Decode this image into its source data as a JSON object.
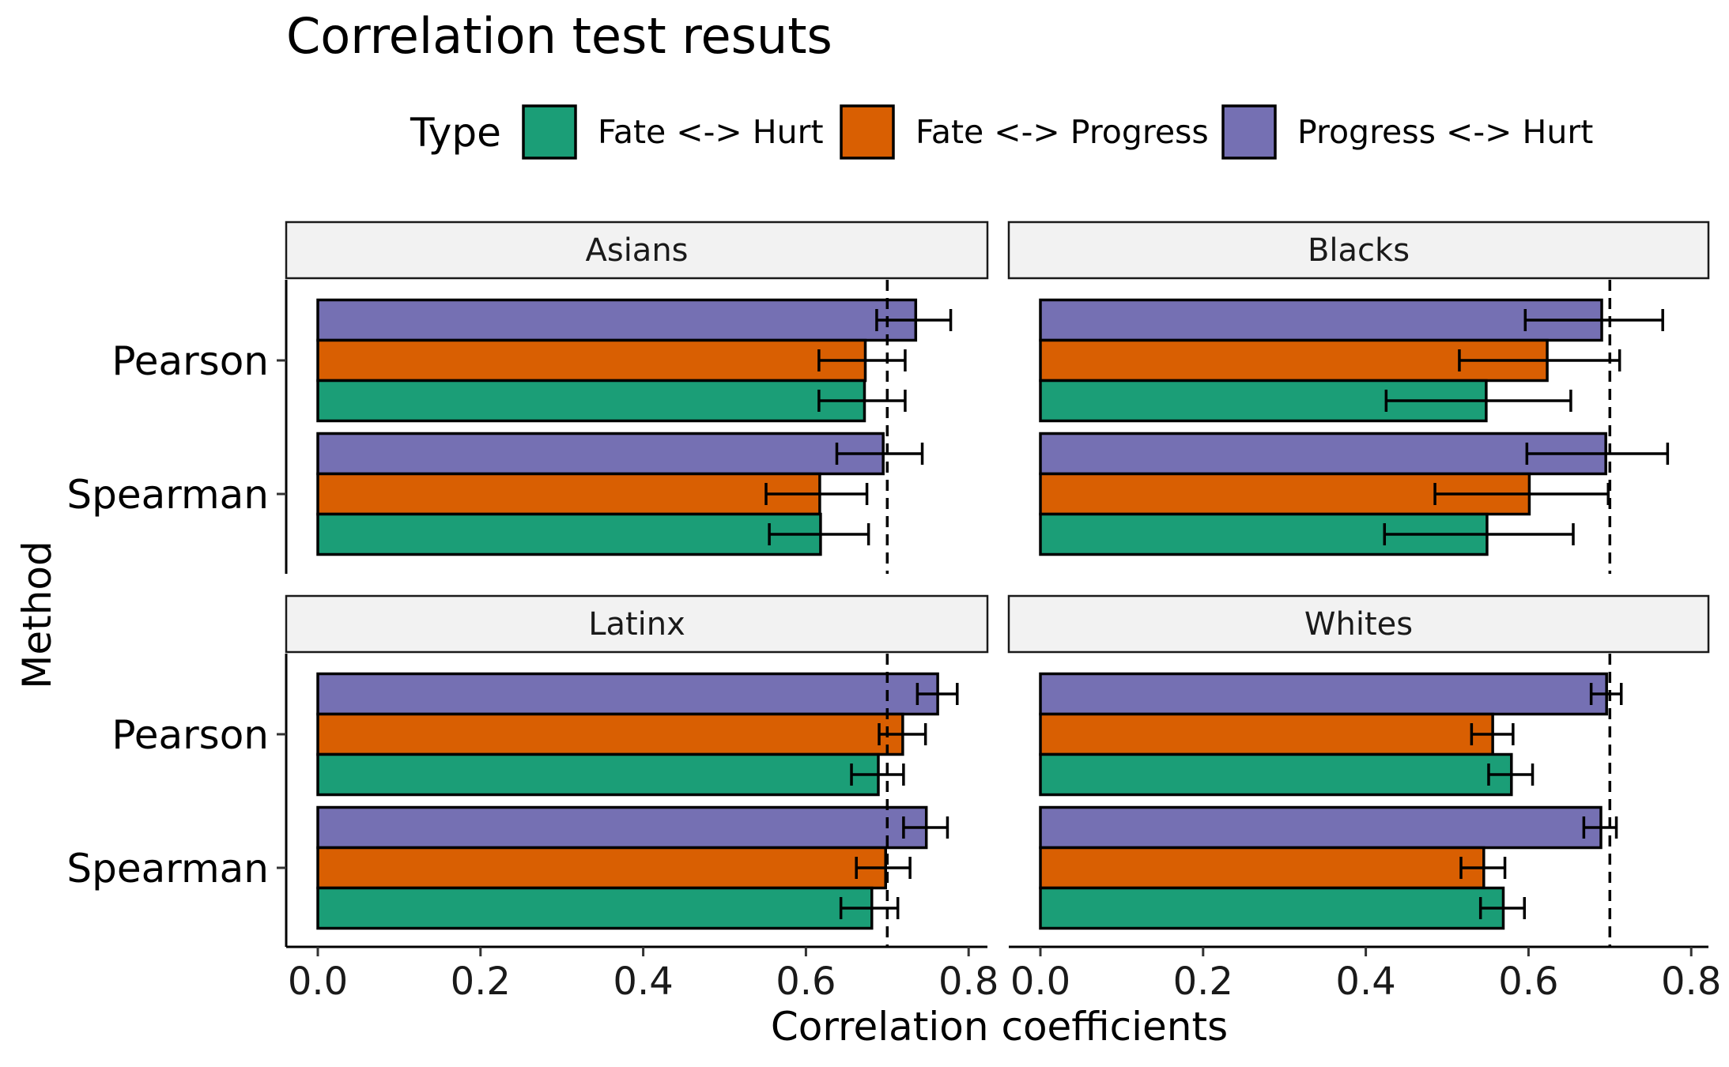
{
  "colors": {
    "Fate <-> Hurt": "#1b9e77",
    "Fate <-> Progress": "#d95f02",
    "Progress <-> Hurt": "#7570b3",
    "strip_fill": "#f2f2f2"
  },
  "chart_data": {
    "type": "bar",
    "orientation": "horizontal",
    "title": "Correlation test resuts",
    "xlabel": "Correlation coefficients",
    "ylabel": "Method",
    "legend_title": "Type",
    "legend_position": "top",
    "xlim": [
      0,
      0.8
    ],
    "xticks": [
      "0.0",
      "0.2",
      "0.4",
      "0.6",
      "0.8"
    ],
    "reference_line": 0.7,
    "categories": [
      "Pearson",
      "Spearman"
    ],
    "types": [
      "Fate <-> Hurt",
      "Fate <-> Progress",
      "Progress <-> Hurt"
    ],
    "panels": [
      {
        "name": "Asians",
        "series": [
          {
            "name": "Fate <-> Hurt",
            "values": [
              0.672,
              0.618
            ],
            "ci_low": [
              0.616,
              0.555
            ],
            "ci_high": [
              0.722,
              0.677
            ]
          },
          {
            "name": "Fate <-> Progress",
            "values": [
              0.673,
              0.617
            ],
            "ci_low": [
              0.616,
              0.551
            ],
            "ci_high": [
              0.722,
              0.675
            ]
          },
          {
            "name": "Progress <-> Hurt",
            "values": [
              0.735,
              0.695
            ],
            "ci_low": [
              0.687,
              0.638
            ],
            "ci_high": [
              0.778,
              0.743
            ]
          }
        ]
      },
      {
        "name": "Blacks",
        "series": [
          {
            "name": "Fate <-> Hurt",
            "values": [
              0.548,
              0.549
            ],
            "ci_low": [
              0.425,
              0.423
            ],
            "ci_high": [
              0.652,
              0.655
            ]
          },
          {
            "name": "Fate <-> Progress",
            "values": [
              0.623,
              0.601
            ],
            "ci_low": [
              0.515,
              0.485
            ],
            "ci_high": [
              0.712,
              0.698
            ]
          },
          {
            "name": "Progress <-> Hurt",
            "values": [
              0.69,
              0.695
            ],
            "ci_low": [
              0.596,
              0.598
            ],
            "ci_high": [
              0.765,
              0.771
            ]
          }
        ]
      },
      {
        "name": "Latinx",
        "series": [
          {
            "name": "Fate <-> Hurt",
            "values": [
              0.689,
              0.681
            ],
            "ci_low": [
              0.656,
              0.643
            ],
            "ci_high": [
              0.72,
              0.713
            ]
          },
          {
            "name": "Fate <-> Progress",
            "values": [
              0.719,
              0.698
            ],
            "ci_low": [
              0.69,
              0.662
            ],
            "ci_high": [
              0.747,
              0.728
            ]
          },
          {
            "name": "Progress <-> Hurt",
            "values": [
              0.762,
              0.748
            ],
            "ci_low": [
              0.737,
              0.72
            ],
            "ci_high": [
              0.786,
              0.774
            ]
          }
        ]
      },
      {
        "name": "Whites",
        "series": [
          {
            "name": "Fate <-> Hurt",
            "values": [
              0.579,
              0.569
            ],
            "ci_low": [
              0.551,
              0.541
            ],
            "ci_high": [
              0.605,
              0.595
            ]
          },
          {
            "name": "Fate <-> Progress",
            "values": [
              0.556,
              0.545
            ],
            "ci_low": [
              0.53,
              0.517
            ],
            "ci_high": [
              0.581,
              0.571
            ]
          },
          {
            "name": "Progress <-> Hurt",
            "values": [
              0.696,
              0.689
            ],
            "ci_low": [
              0.677,
              0.668
            ],
            "ci_high": [
              0.714,
              0.708
            ]
          }
        ]
      }
    ]
  }
}
